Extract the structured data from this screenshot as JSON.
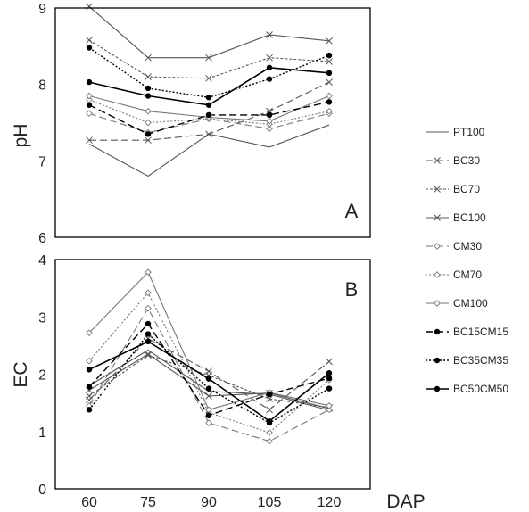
{
  "chart_data": [
    {
      "type": "line",
      "panel_label": "A",
      "ylabel": "pH",
      "ylim": [
        6,
        9
      ],
      "yticks": [
        "6",
        "7",
        "8",
        "9"
      ],
      "x": [
        60,
        75,
        90,
        105,
        120
      ],
      "series": [
        {
          "name": "PT100",
          "values": [
            7.22,
            6.8,
            7.35,
            7.18,
            7.47
          ]
        },
        {
          "name": "BC30",
          "values": [
            7.27,
            7.27,
            7.35,
            7.65,
            8.03
          ]
        },
        {
          "name": "BC70",
          "values": [
            8.58,
            8.1,
            8.08,
            8.35,
            8.3
          ]
        },
        {
          "name": "BC100",
          "values": [
            9.02,
            8.35,
            8.35,
            8.65,
            8.57
          ]
        },
        {
          "name": "CM30",
          "values": [
            7.62,
            7.37,
            7.55,
            7.42,
            7.62
          ]
        },
        {
          "name": "CM70",
          "values": [
            7.8,
            7.5,
            7.55,
            7.48,
            7.65
          ]
        },
        {
          "name": "CM100",
          "values": [
            7.85,
            7.65,
            7.57,
            7.52,
            7.85
          ]
        },
        {
          "name": "BC15CM15",
          "values": [
            7.73,
            7.35,
            7.6,
            7.6,
            7.77
          ]
        },
        {
          "name": "BC35CM35",
          "values": [
            8.48,
            7.95,
            7.83,
            8.07,
            8.38
          ]
        },
        {
          "name": "BC50CM50",
          "values": [
            8.03,
            7.85,
            7.73,
            8.22,
            8.15
          ]
        }
      ]
    },
    {
      "type": "line",
      "panel_label": "B",
      "ylabel": "EC",
      "xlabel": "DAP",
      "ylim": [
        0,
        4
      ],
      "yticks": [
        "0",
        "1",
        "2",
        "3",
        "4"
      ],
      "categories": [
        "60",
        "75",
        "90",
        "105",
        "120"
      ],
      "x": [
        60,
        75,
        90,
        105,
        120
      ],
      "series": [
        {
          "name": "PT100",
          "values": [
            1.8,
            2.42,
            1.7,
            1.65,
            1.37
          ]
        },
        {
          "name": "BC30",
          "values": [
            1.55,
            2.62,
            2.05,
            1.38,
            2.22
          ]
        },
        {
          "name": "BC70",
          "values": [
            1.62,
            2.33,
            1.98,
            1.57,
            1.42
          ]
        },
        {
          "name": "BC100",
          "values": [
            1.72,
            2.35,
            1.62,
            1.67,
            1.4
          ]
        },
        {
          "name": "CM30",
          "values": [
            1.45,
            3.15,
            1.15,
            0.83,
            1.38
          ]
        },
        {
          "name": "CM70",
          "values": [
            2.23,
            3.42,
            1.33,
            0.98,
            1.9
          ]
        },
        {
          "name": "CM100",
          "values": [
            2.72,
            3.78,
            1.38,
            1.68,
            1.45
          ]
        },
        {
          "name": "BC15CM15",
          "values": [
            1.78,
            2.88,
            1.28,
            1.65,
            1.93
          ]
        },
        {
          "name": "BC35CM35",
          "values": [
            1.38,
            2.7,
            1.75,
            1.15,
            1.75
          ]
        },
        {
          "name": "BC50CM50",
          "values": [
            2.08,
            2.57,
            1.92,
            1.18,
            2.02
          ]
        }
      ]
    }
  ],
  "legend": [
    "PT100",
    "BC30",
    "BC70",
    "BC100",
    "CM30",
    "CM70",
    "CM100",
    "BC15CM15",
    "BC35CM35",
    "BC50CM50"
  ]
}
